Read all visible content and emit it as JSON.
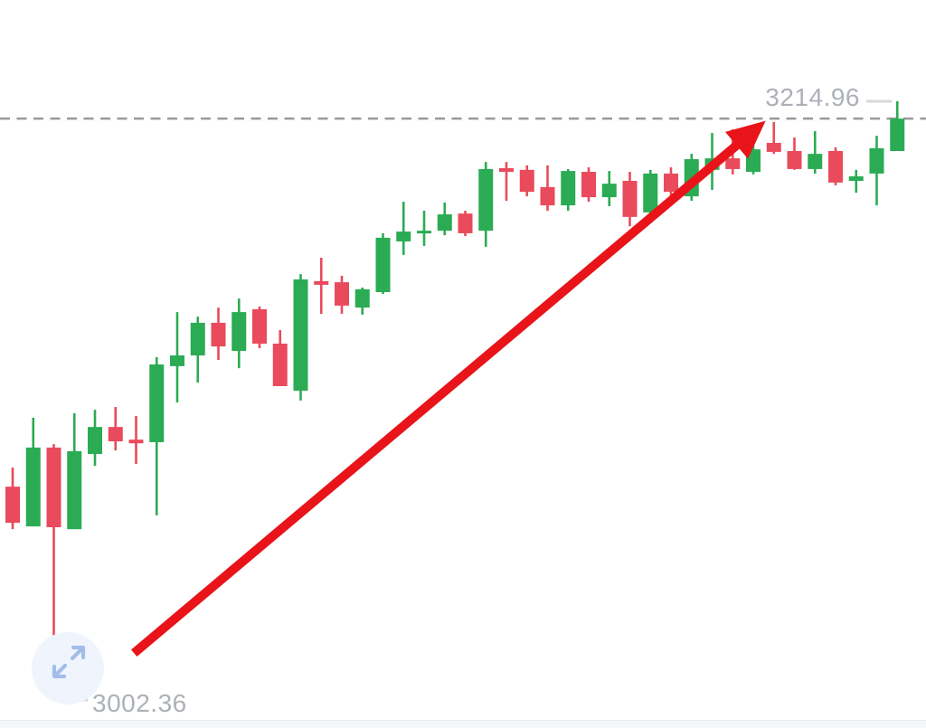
{
  "widget": {
    "background": "#ffffff"
  },
  "colors": {
    "up_candle": "#2bab53",
    "down_candle": "#e94a5c",
    "arrow": "#e81419",
    "price_label_text": "#adb1b7",
    "dashed_price_line": "#97999d",
    "marker_dash": "#d6d8da",
    "expand_icon_circle": "#f0f5fd",
    "expand_icon_arrows": "#a3bdeb",
    "bottom_panel": "#f5f6f7"
  },
  "chart_data": {
    "type": "candlestick",
    "title": "",
    "grid": false,
    "legend": false,
    "y_axis": {
      "visible_high": 3214.96,
      "visible_low": 3002.36,
      "labels_shown": [
        "3214.96",
        "3002.36"
      ]
    },
    "high_marker": {
      "price": 3214.96,
      "label": "3214.96"
    },
    "low_marker": {
      "price": 3002.36,
      "label": "3002.36"
    },
    "last_price_line": {
      "price": 3208.8,
      "style": "dashed"
    },
    "candles": [
      {
        "o": 3078.1,
        "h": 3084.9,
        "l": 3063.0,
        "c": 3065.3
      },
      {
        "o": 3064.0,
        "h": 3102.6,
        "l": 3064.0,
        "c": 3092.0
      },
      {
        "o": 3092.0,
        "h": 3093.2,
        "l": 3002.4,
        "c": 3063.7
      },
      {
        "o": 3063.0,
        "h": 3104.2,
        "l": 3063.0,
        "c": 3090.7
      },
      {
        "o": 3089.7,
        "h": 3105.4,
        "l": 3085.5,
        "c": 3099.3
      },
      {
        "o": 3099.3,
        "h": 3106.4,
        "l": 3091.0,
        "c": 3094.2
      },
      {
        "o": 3094.8,
        "h": 3103.2,
        "l": 3086.2,
        "c": 3093.5
      },
      {
        "o": 3093.9,
        "h": 3124.1,
        "l": 3067.9,
        "c": 3121.5
      },
      {
        "o": 3120.9,
        "h": 3140.1,
        "l": 3108.0,
        "c": 3124.7
      },
      {
        "o": 3124.7,
        "h": 3138.5,
        "l": 3115.1,
        "c": 3136.3
      },
      {
        "o": 3136.3,
        "h": 3141.7,
        "l": 3123.1,
        "c": 3127.9
      },
      {
        "o": 3126.3,
        "h": 3144.9,
        "l": 3120.2,
        "c": 3140.1
      },
      {
        "o": 3141.1,
        "h": 3142.1,
        "l": 3127.3,
        "c": 3128.9
      },
      {
        "o": 3128.9,
        "h": 3133.7,
        "l": 3113.8,
        "c": 3113.8
      },
      {
        "o": 3112.2,
        "h": 3153.6,
        "l": 3108.7,
        "c": 3151.7
      },
      {
        "o": 3151.1,
        "h": 3159.4,
        "l": 3139.5,
        "c": 3149.8
      },
      {
        "o": 3150.7,
        "h": 3153.0,
        "l": 3139.5,
        "c": 3142.4
      },
      {
        "o": 3141.7,
        "h": 3148.8,
        "l": 3139.2,
        "c": 3148.2
      },
      {
        "o": 3147.2,
        "h": 3168.1,
        "l": 3146.5,
        "c": 3166.5
      },
      {
        "o": 3165.2,
        "h": 3179.3,
        "l": 3160.4,
        "c": 3168.7
      },
      {
        "o": 3168.4,
        "h": 3176.1,
        "l": 3163.6,
        "c": 3169.0
      },
      {
        "o": 3169.0,
        "h": 3179.0,
        "l": 3167.4,
        "c": 3174.8
      },
      {
        "o": 3175.1,
        "h": 3176.1,
        "l": 3167.1,
        "c": 3168.1
      },
      {
        "o": 3169.0,
        "h": 3193.4,
        "l": 3163.3,
        "c": 3190.9
      },
      {
        "o": 3191.2,
        "h": 3193.4,
        "l": 3179.6,
        "c": 3189.9
      },
      {
        "o": 3190.6,
        "h": 3192.2,
        "l": 3181.2,
        "c": 3182.8
      },
      {
        "o": 3184.5,
        "h": 3192.2,
        "l": 3176.1,
        "c": 3178.0
      },
      {
        "o": 3178.0,
        "h": 3190.9,
        "l": 3176.1,
        "c": 3190.2
      },
      {
        "o": 3189.9,
        "h": 3191.5,
        "l": 3179.3,
        "c": 3180.9
      },
      {
        "o": 3180.9,
        "h": 3190.2,
        "l": 3177.7,
        "c": 3185.7
      },
      {
        "o": 3186.7,
        "h": 3189.9,
        "l": 3170.6,
        "c": 3173.9
      },
      {
        "o": 3175.5,
        "h": 3190.6,
        "l": 3173.9,
        "c": 3189.3
      },
      {
        "o": 3189.3,
        "h": 3191.5,
        "l": 3180.9,
        "c": 3182.8
      },
      {
        "o": 3181.2,
        "h": 3196.3,
        "l": 3179.6,
        "c": 3194.4
      },
      {
        "o": 3190.6,
        "h": 3203.7,
        "l": 3183.5,
        "c": 3194.7
      },
      {
        "o": 3194.7,
        "h": 3205.0,
        "l": 3189.0,
        "c": 3190.9
      },
      {
        "o": 3189.9,
        "h": 3200.5,
        "l": 3189.0,
        "c": 3197.9
      },
      {
        "o": 3200.2,
        "h": 3207.6,
        "l": 3196.3,
        "c": 3197.0
      },
      {
        "o": 3197.3,
        "h": 3202.1,
        "l": 3190.6,
        "c": 3190.9
      },
      {
        "o": 3190.9,
        "h": 3204.4,
        "l": 3189.3,
        "c": 3196.3
      },
      {
        "o": 3197.3,
        "h": 3198.6,
        "l": 3185.1,
        "c": 3186.1
      },
      {
        "o": 3186.7,
        "h": 3190.6,
        "l": 3182.5,
        "c": 3188.3
      },
      {
        "o": 3189.3,
        "h": 3202.7,
        "l": 3178.0,
        "c": 3198.3
      },
      {
        "o": 3197.3,
        "h": 3215.0,
        "l": 3197.3,
        "c": 3208.8
      }
    ],
    "annotation_arrow": {
      "from": {
        "index": 5.9,
        "price": 3019.0
      },
      "to": {
        "index": 36.6,
        "price": 3208.0
      }
    }
  }
}
